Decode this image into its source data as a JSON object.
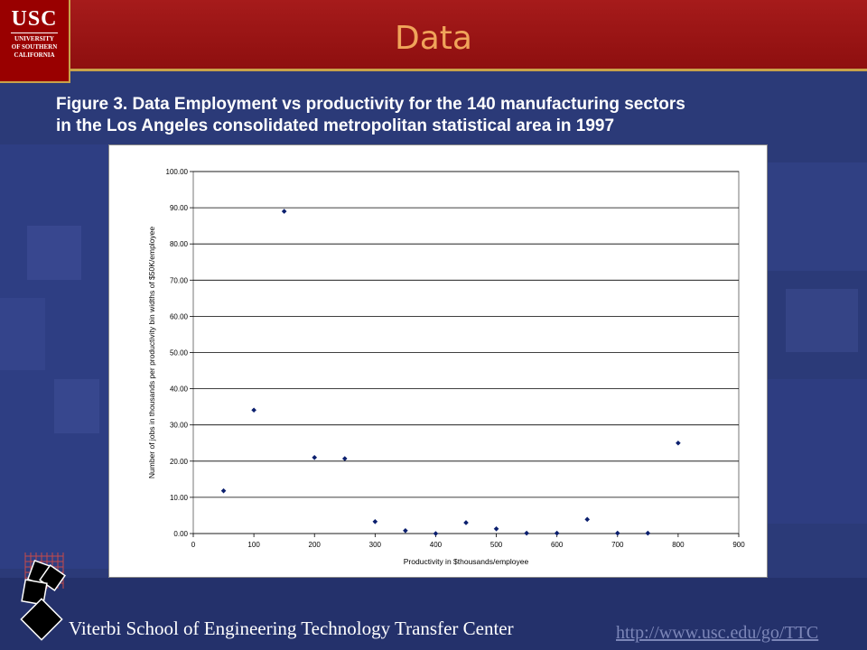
{
  "slide": {
    "title": "Data",
    "caption_line1": "Figure 3.  Data   Employment vs productivity for the 140 manufacturing sectors",
    "caption_line2": "in the Los Angeles consolidated metropolitan statistical area in 1997"
  },
  "logo": {
    "usc": "USC",
    "line1": "UNIVERSITY",
    "line2": "OF SOUTHERN",
    "line3": "CALIFORNIA"
  },
  "footer": {
    "text": "Viterbi School of Engineering Technology Transfer Center",
    "url": "http://www.usc.edu/go/TTC"
  },
  "colors": {
    "header": "#990000",
    "title": "#f0a45a",
    "background": "#2b3a78",
    "marker": "#0b1f6e"
  },
  "chart_data": {
    "type": "scatter",
    "title": "",
    "xlabel": "Productivity in $thousands/employee",
    "ylabel": "Number of jobs in thousands per productivity bin widths of $50K/employee",
    "xlim": [
      0,
      900
    ],
    "ylim": [
      0,
      100
    ],
    "x_ticks": [
      "0",
      "100",
      "200",
      "300",
      "400",
      "500",
      "600",
      "700",
      "800",
      "900"
    ],
    "y_ticks": [
      "0.00",
      "10.00",
      "20.00",
      "30.00",
      "40.00",
      "50.00",
      "60.00",
      "70.00",
      "80.00",
      "90.00",
      "100.00"
    ],
    "grid": "horizontal",
    "x": [
      50,
      100,
      150,
      200,
      250,
      300,
      350,
      400,
      450,
      500,
      550,
      600,
      650,
      700,
      750,
      800
    ],
    "y": [
      11.8,
      34.1,
      89.0,
      21.0,
      20.7,
      3.3,
      0.8,
      0.0,
      3.0,
      1.3,
      0.1,
      0.1,
      3.9,
      0.1,
      0.1,
      25.0
    ]
  }
}
